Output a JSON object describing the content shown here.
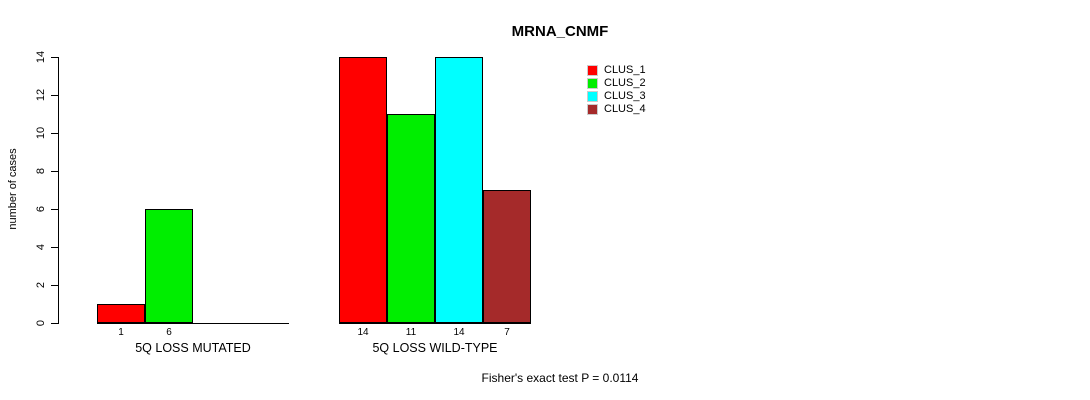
{
  "chart_data": {
    "type": "bar",
    "title": "MRNA_CNMF",
    "ylabel": "number of cases",
    "ylim": [
      0,
      14
    ],
    "yticks": [
      0,
      2,
      4,
      6,
      8,
      10,
      12,
      14
    ],
    "grid": false,
    "legend_position": "top-right",
    "series_names": [
      "CLUS_1",
      "CLUS_2",
      "CLUS_3",
      "CLUS_4"
    ],
    "series_colors": [
      "#FF0000",
      "#00EE00",
      "#00FFFF",
      "#A52A2A"
    ],
    "groups": [
      {
        "label": "5Q LOSS MUTATED",
        "values": [
          1,
          6,
          0,
          0
        ],
        "bar_value_labels": [
          "1",
          "6",
          "",
          ""
        ]
      },
      {
        "label": "5Q LOSS WILD-TYPE",
        "values": [
          14,
          11,
          14,
          7
        ],
        "bar_value_labels": [
          "14",
          "11",
          "14",
          "7"
        ]
      }
    ],
    "annotation": "Fisher's exact test P = 0.0114"
  },
  "legend": {
    "items": [
      {
        "label": "CLUS_1",
        "color": "#FF0000"
      },
      {
        "label": "CLUS_2",
        "color": "#00EE00"
      },
      {
        "label": "CLUS_3",
        "color": "#00FFFF"
      },
      {
        "label": "CLUS_4",
        "color": "#A52A2A"
      }
    ]
  }
}
